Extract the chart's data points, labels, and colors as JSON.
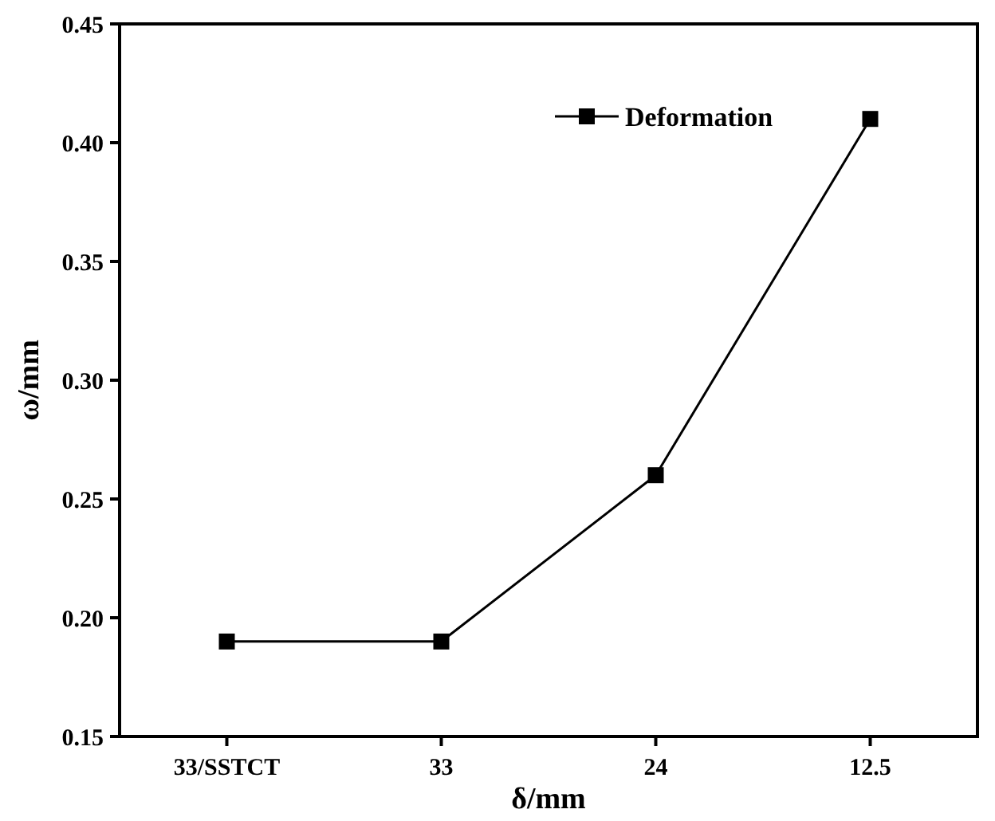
{
  "chart_data": {
    "type": "line",
    "xlabel": "δ/mm",
    "ylabel": "ω/mm",
    "categories": [
      "33/SSTCT",
      "33",
      "24",
      "12.5"
    ],
    "series": [
      {
        "name": "Deformation",
        "color": "#000000",
        "values": [
          0.19,
          0.19,
          0.26,
          0.41
        ]
      }
    ],
    "ylim": [
      0.15,
      0.45
    ],
    "yticks": [
      {
        "value": 0.15,
        "label": "0.15"
      },
      {
        "value": 0.2,
        "label": "0.20"
      },
      {
        "value": 0.25,
        "label": "0.25"
      },
      {
        "value": 0.3,
        "label": "0.30"
      },
      {
        "value": 0.35,
        "label": "0.35"
      },
      {
        "value": 0.4,
        "label": "0.40"
      },
      {
        "value": 0.45,
        "label": "0.45"
      }
    ],
    "legend": "top right",
    "marker": "square",
    "line_style": "solid",
    "grid": false
  }
}
